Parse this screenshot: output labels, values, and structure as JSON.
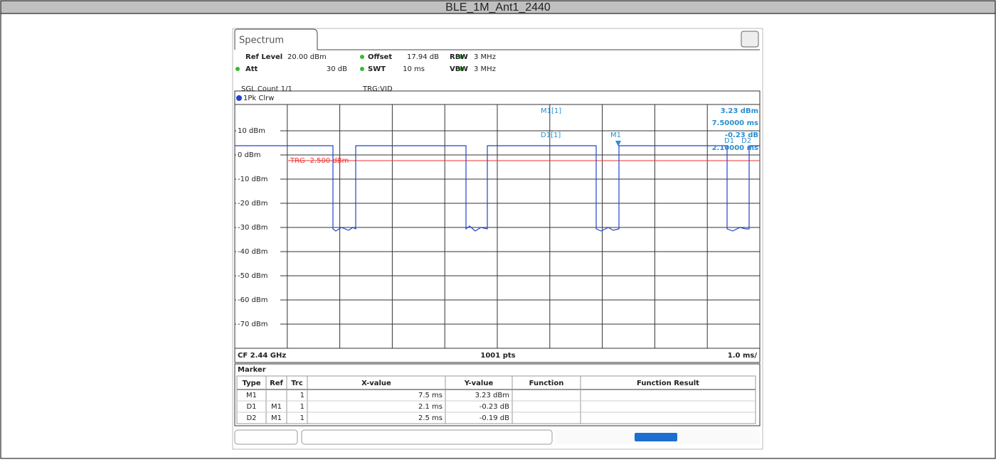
{
  "title": "BLE_1M_Ant1_2440",
  "screen": {
    "tab": "Spectrum",
    "settings": [
      [
        {
          "label": "Ref Level",
          "value": "20.00 dBm"
        },
        {
          "label": "Offset",
          "value": "17.94 dB"
        },
        {
          "label": "RBW",
          "value": "3 MHz"
        }
      ],
      [
        {
          "label": "Att",
          "value": "30 dB"
        },
        {
          "label": "SWT",
          "value": "10 ms"
        },
        {
          "label": "VBW",
          "value": "3 MHz"
        }
      ]
    ],
    "count": "SGL Count 1/1",
    "trigger": "TRG:VID",
    "trace": "1Pk Clrw",
    "y_labels": [
      "10 dBm",
      "0 dBm",
      "-10 dBm",
      "-20 dBm",
      "-30 dBm",
      "-40 dBm",
      "-50 dBm",
      "-60 dBm",
      "-70 dBm"
    ],
    "trigger_level": "TRG -2.500 dBm",
    "readout": [
      [
        "M1[1]",
        "3.23 dBm",
        "7.50000 ms"
      ],
      [
        "D1[1]",
        "-0.23 dB",
        "2.10000 ms"
      ]
    ],
    "markers": [
      "M1",
      "D1",
      "D2"
    ],
    "footer": [
      "CF 2.44 GHz",
      "1001 pts",
      "1.0 ms/"
    ],
    "table": {
      "title": "Marker",
      "headers": [
        "Type",
        "Ref",
        "Trc",
        "X-value",
        "Y-value",
        "Function",
        "Function Result"
      ],
      "rows": [
        [
          "M1",
          "",
          "1",
          "7.5 ms",
          "3.23 dBm",
          "",
          ""
        ],
        [
          "D1",
          "M1",
          "1",
          "2.1 ms",
          "-0.23 dB",
          "",
          ""
        ],
        [
          "D2",
          "M1",
          "1",
          "2.5 ms",
          "-0.19 dB",
          "",
          ""
        ]
      ]
    }
  }
}
